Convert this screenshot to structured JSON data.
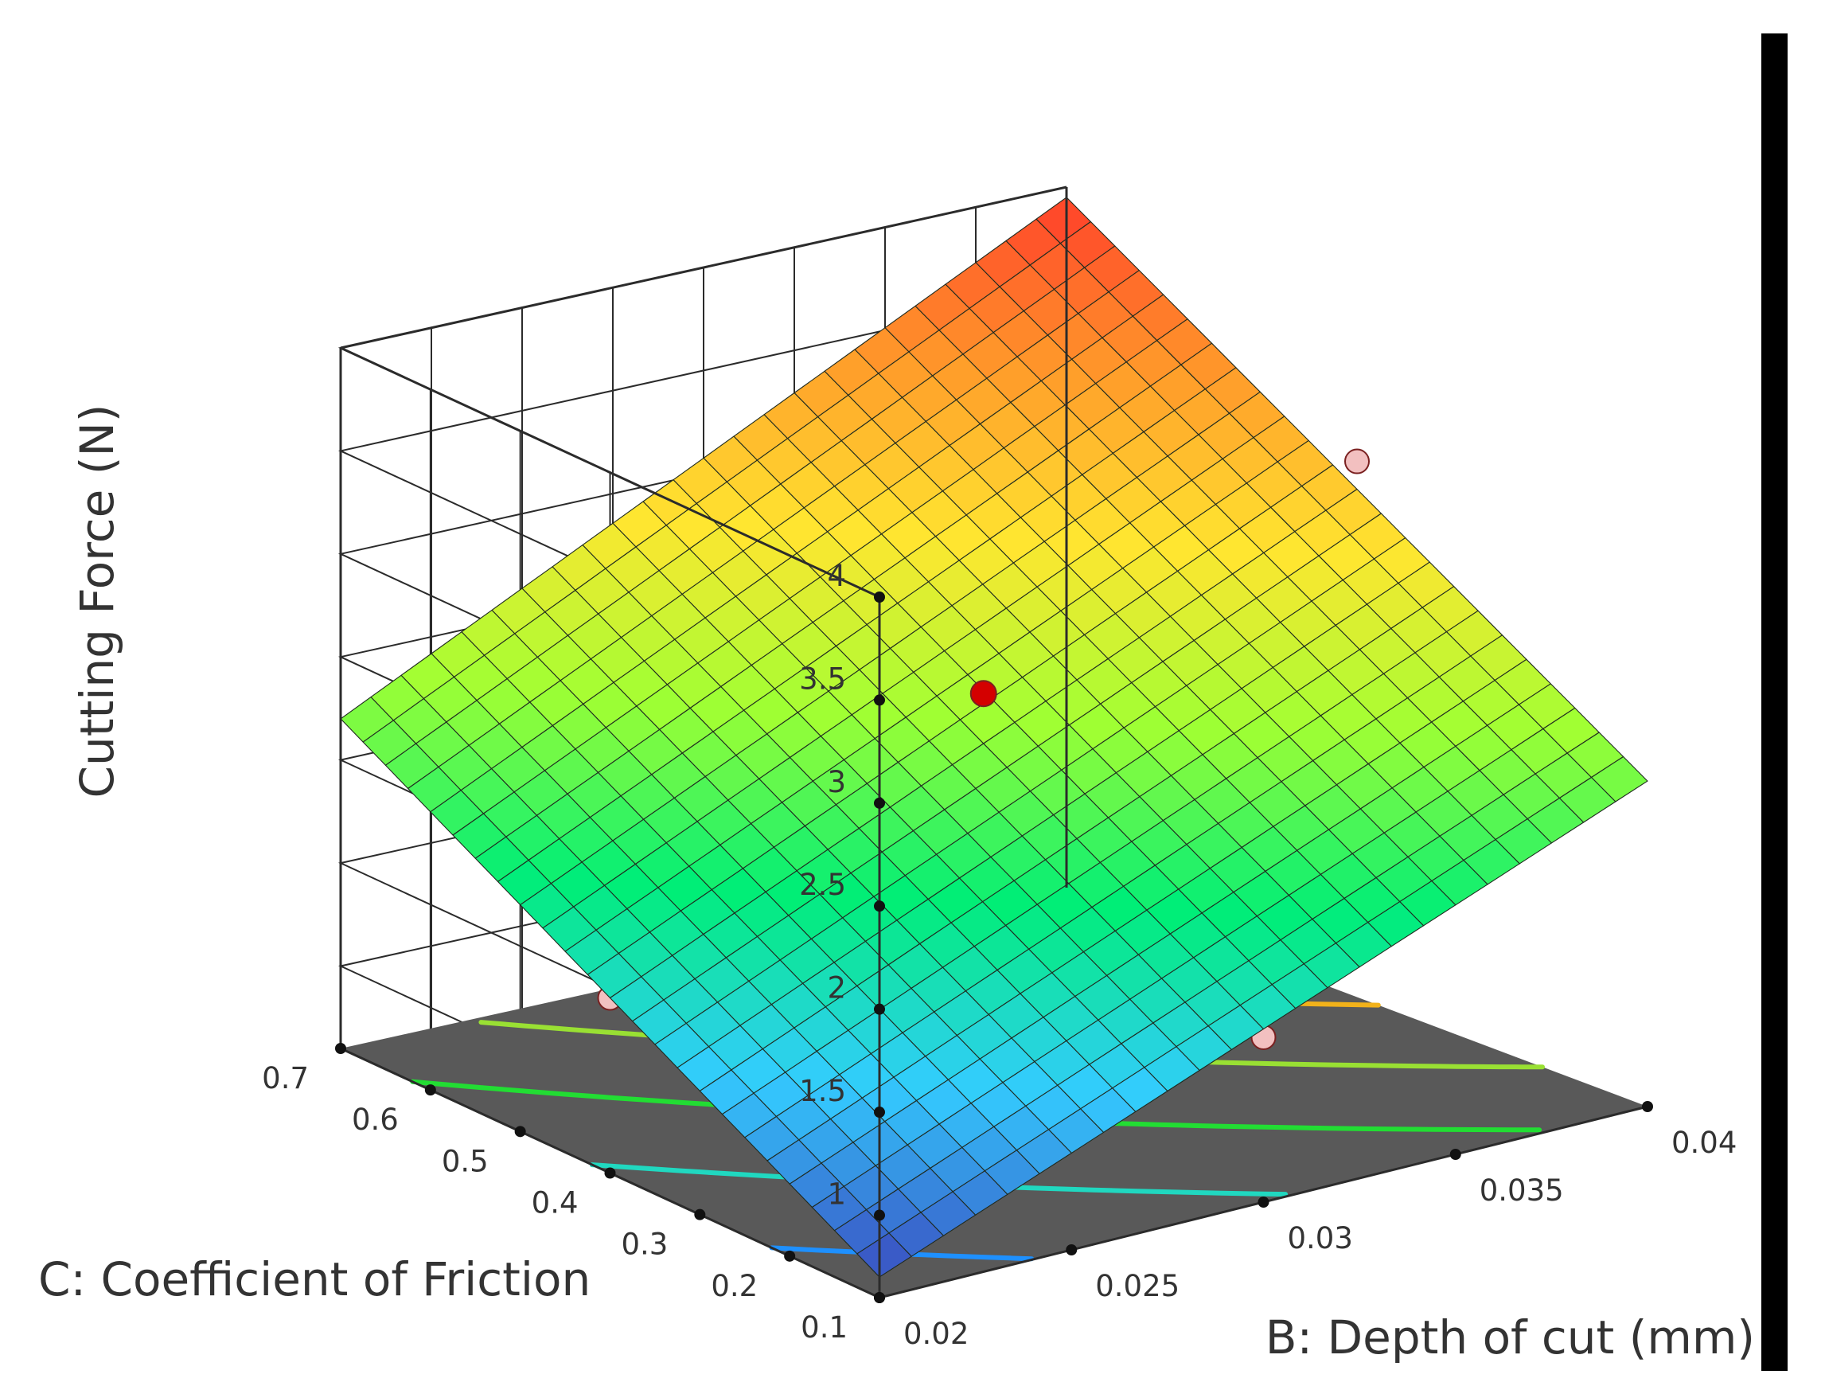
{
  "chart_data": {
    "type": "surface3d",
    "zlabel": "Cutting Force (N)",
    "xlabel": "B: Depth of cut (mm)",
    "ylabel": "C: Coefficient of Friction",
    "x_ticks": [
      "0.02",
      "0.025",
      "0.03",
      "0.035",
      "0.04"
    ],
    "y_ticks": [
      "0.1",
      "0.2",
      "0.3",
      "0.4",
      "0.5",
      "0.6",
      "0.7"
    ],
    "z_ticks": [
      "1",
      "1.5",
      "2",
      "2.5",
      "3",
      "3.5",
      "4"
    ],
    "xlim": [
      0.02,
      0.04
    ],
    "ylim": [
      0.1,
      0.7
    ],
    "zlim": [
      0.6,
      4.0
    ],
    "grid": true,
    "colormap": [
      "#3b4cc0",
      "#33ccff",
      "#00ee77",
      "#a0ff33",
      "#ffe630",
      "#ff9a2a",
      "#ff3d2a"
    ],
    "surface": {
      "corners": [
        {
          "x": 0.02,
          "y": 0.1,
          "z": 0.7
        },
        {
          "x": 0.04,
          "y": 0.1,
          "z": 2.18
        },
        {
          "x": 0.02,
          "y": 0.7,
          "z": 2.2
        },
        {
          "x": 0.04,
          "y": 0.7,
          "z": 3.95
        }
      ]
    },
    "design_points": [
      {
        "x": 0.03,
        "y": 0.4,
        "z": 2.5,
        "color": "#d40000",
        "position": "above"
      },
      {
        "x": 0.02,
        "y": 0.4,
        "z": 1.45,
        "color": "#f2c0c0",
        "position": "below"
      },
      {
        "x": 0.04,
        "y": 0.4,
        "z": 3.2,
        "color": "#f2c0c0",
        "position": "below"
      },
      {
        "x": 0.03,
        "y": 0.7,
        "z": 3.0,
        "color": "#f2c0c0",
        "position": "below"
      },
      {
        "x": 0.03,
        "y": 0.1,
        "z": 1.4,
        "color": "#f2c0c0",
        "position": "below"
      }
    ],
    "floor_contours": [
      {
        "level": 1.0,
        "color": "#1e90ff"
      },
      {
        "level": 1.5,
        "color": "#20d8c0"
      },
      {
        "level": 2.0,
        "color": "#22dd33"
      },
      {
        "level": 2.5,
        "color": "#99e033"
      },
      {
        "level": 3.0,
        "color": "#f2b21a"
      }
    ]
  }
}
